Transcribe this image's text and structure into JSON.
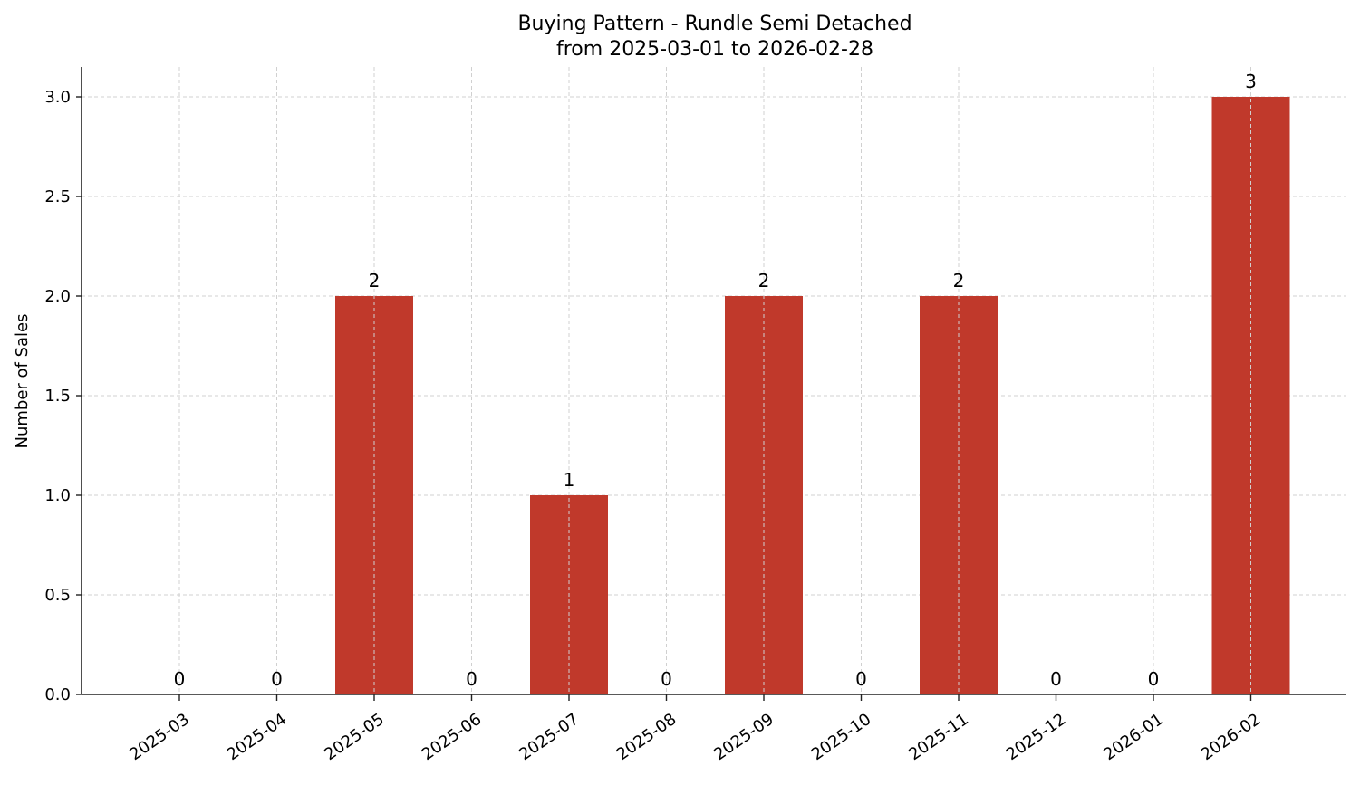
{
  "chart_data": {
    "type": "bar",
    "title": "Buying Pattern - Rundle Semi Detached",
    "subtitle": "from 2025-03-01 to 2026-02-28",
    "xlabel": "",
    "ylabel": "Number of Sales",
    "categories": [
      "2025-03",
      "2025-04",
      "2025-05",
      "2025-06",
      "2025-07",
      "2025-08",
      "2025-09",
      "2025-10",
      "2025-11",
      "2025-12",
      "2026-01",
      "2026-02"
    ],
    "values": [
      0,
      0,
      2,
      0,
      1,
      0,
      2,
      0,
      2,
      0,
      0,
      3
    ],
    "ylim": [
      0,
      3.15
    ],
    "yticks": [
      "0.0",
      "0.5",
      "1.0",
      "1.5",
      "2.0",
      "2.5",
      "3.0"
    ],
    "grid": true,
    "bar_color": "#c0392b",
    "data_labels": true
  }
}
